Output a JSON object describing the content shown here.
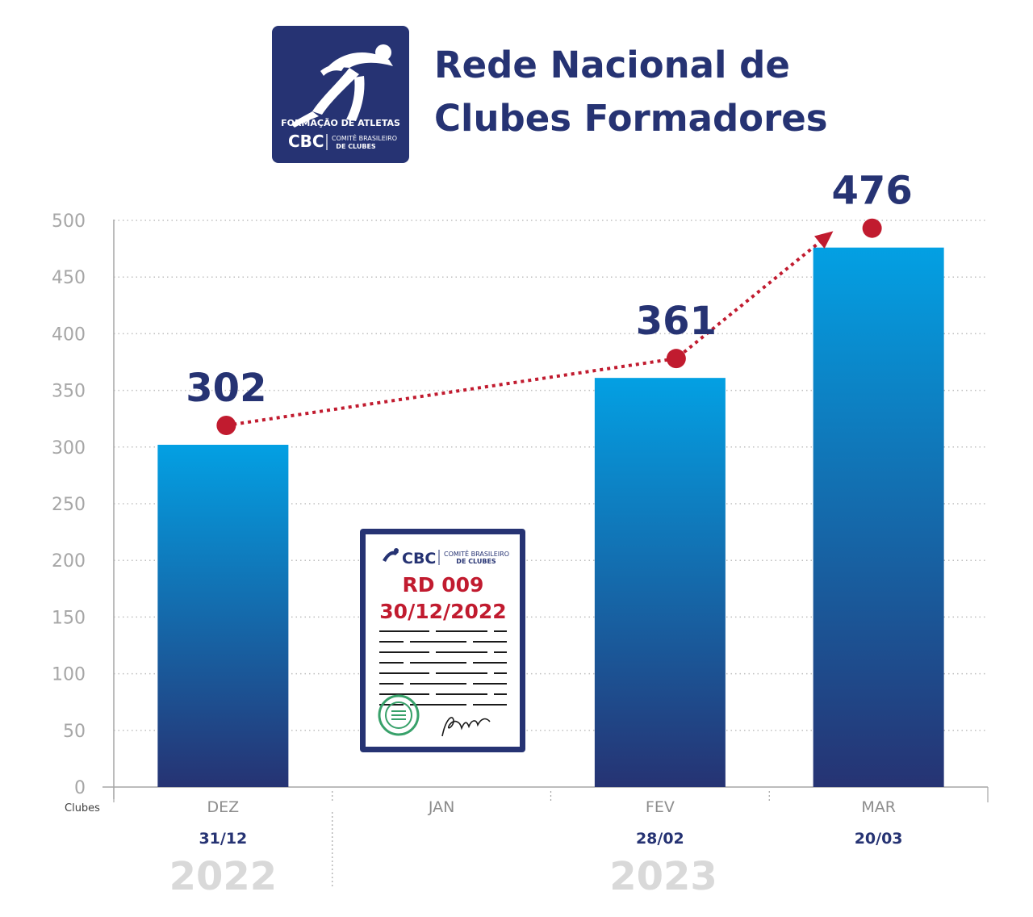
{
  "header": {
    "title_line1": "Rede Nacional de",
    "title_line2": "Clubes Formadores",
    "logo": {
      "tagline": "FORMAÇÃO DE ATLETAS",
      "brand": "CBC",
      "org_line1": "COMITÊ BRASILEIRO",
      "org_line2": "DE CLUBES",
      "icon": "runner-icon"
    }
  },
  "document_card": {
    "brand": "CBC",
    "org_line1": "COMITÊ BRASILEIRO",
    "org_line2": "DE CLUBES",
    "code": "RD 009",
    "date": "30/12/2022",
    "seal_icon": "seal-icon",
    "signature_icon": "signature-icon"
  },
  "colors": {
    "navy": "#263373",
    "bar_top": "#03a0e3",
    "bar_bottom": "#263373",
    "trend_red": "#c11b2f",
    "grid": "#bfbfbf",
    "year_gray": "#d9d9d9"
  },
  "chart_data": {
    "type": "bar",
    "title": "Rede Nacional de Clubes Formadores",
    "ylabel": "Clubes",
    "ylim": [
      0,
      500
    ],
    "yticks": [
      0,
      50,
      100,
      150,
      200,
      250,
      300,
      350,
      400,
      450,
      500
    ],
    "grid": true,
    "categories": [
      "DEZ",
      "JAN",
      "FEV",
      "MAR"
    ],
    "dates": [
      "31/12",
      "",
      "28/02",
      "20/03"
    ],
    "values": [
      302,
      null,
      361,
      476
    ],
    "value_labels": [
      "302",
      "",
      "361",
      "476"
    ],
    "years": [
      {
        "label": "2022",
        "months": [
          "DEZ"
        ]
      },
      {
        "label": "2023",
        "months": [
          "JAN",
          "FEV",
          "MAR"
        ]
      }
    ],
    "trend": {
      "style": "dotted-arrow",
      "points_at": [
        "DEZ",
        "FEV",
        "MAR"
      ]
    }
  }
}
